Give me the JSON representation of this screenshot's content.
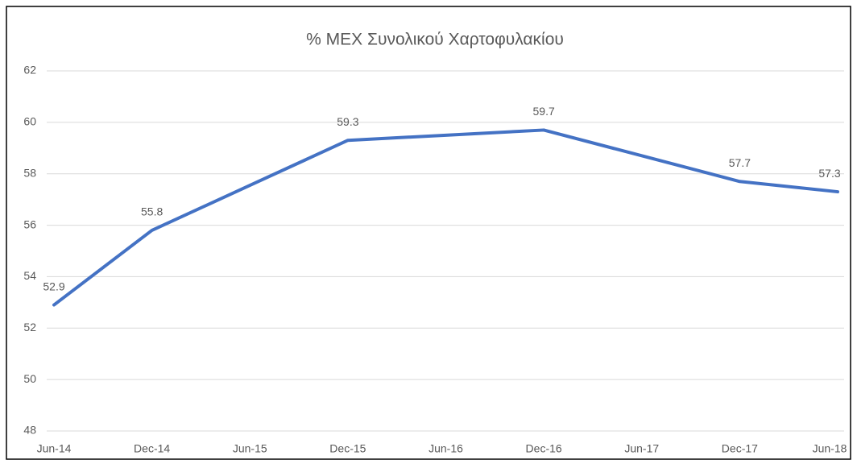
{
  "chart_data": {
    "type": "line",
    "title": "% ΜΕΧ Συνολικού Χαρτοφυλακίου",
    "categories": [
      "Jun-14",
      "Dec-14",
      "Jun-15",
      "Dec-15",
      "Jun-16",
      "Dec-16",
      "Jun-17",
      "Dec-17",
      "Jun-18"
    ],
    "series": [
      {
        "color": "#4472c4",
        "values": [
          52.9,
          55.8,
          57.55,
          59.3,
          59.5,
          59.7,
          58.7,
          57.7,
          57.3
        ],
        "value_labels": [
          "52.9",
          "55.8",
          null,
          "59.3",
          null,
          "59.7",
          null,
          "57.7",
          "57.3"
        ]
      }
    ],
    "ylim": [
      48,
      62
    ],
    "yticks": [
      48,
      50,
      52,
      54,
      56,
      58,
      60,
      62
    ],
    "grid": true
  }
}
